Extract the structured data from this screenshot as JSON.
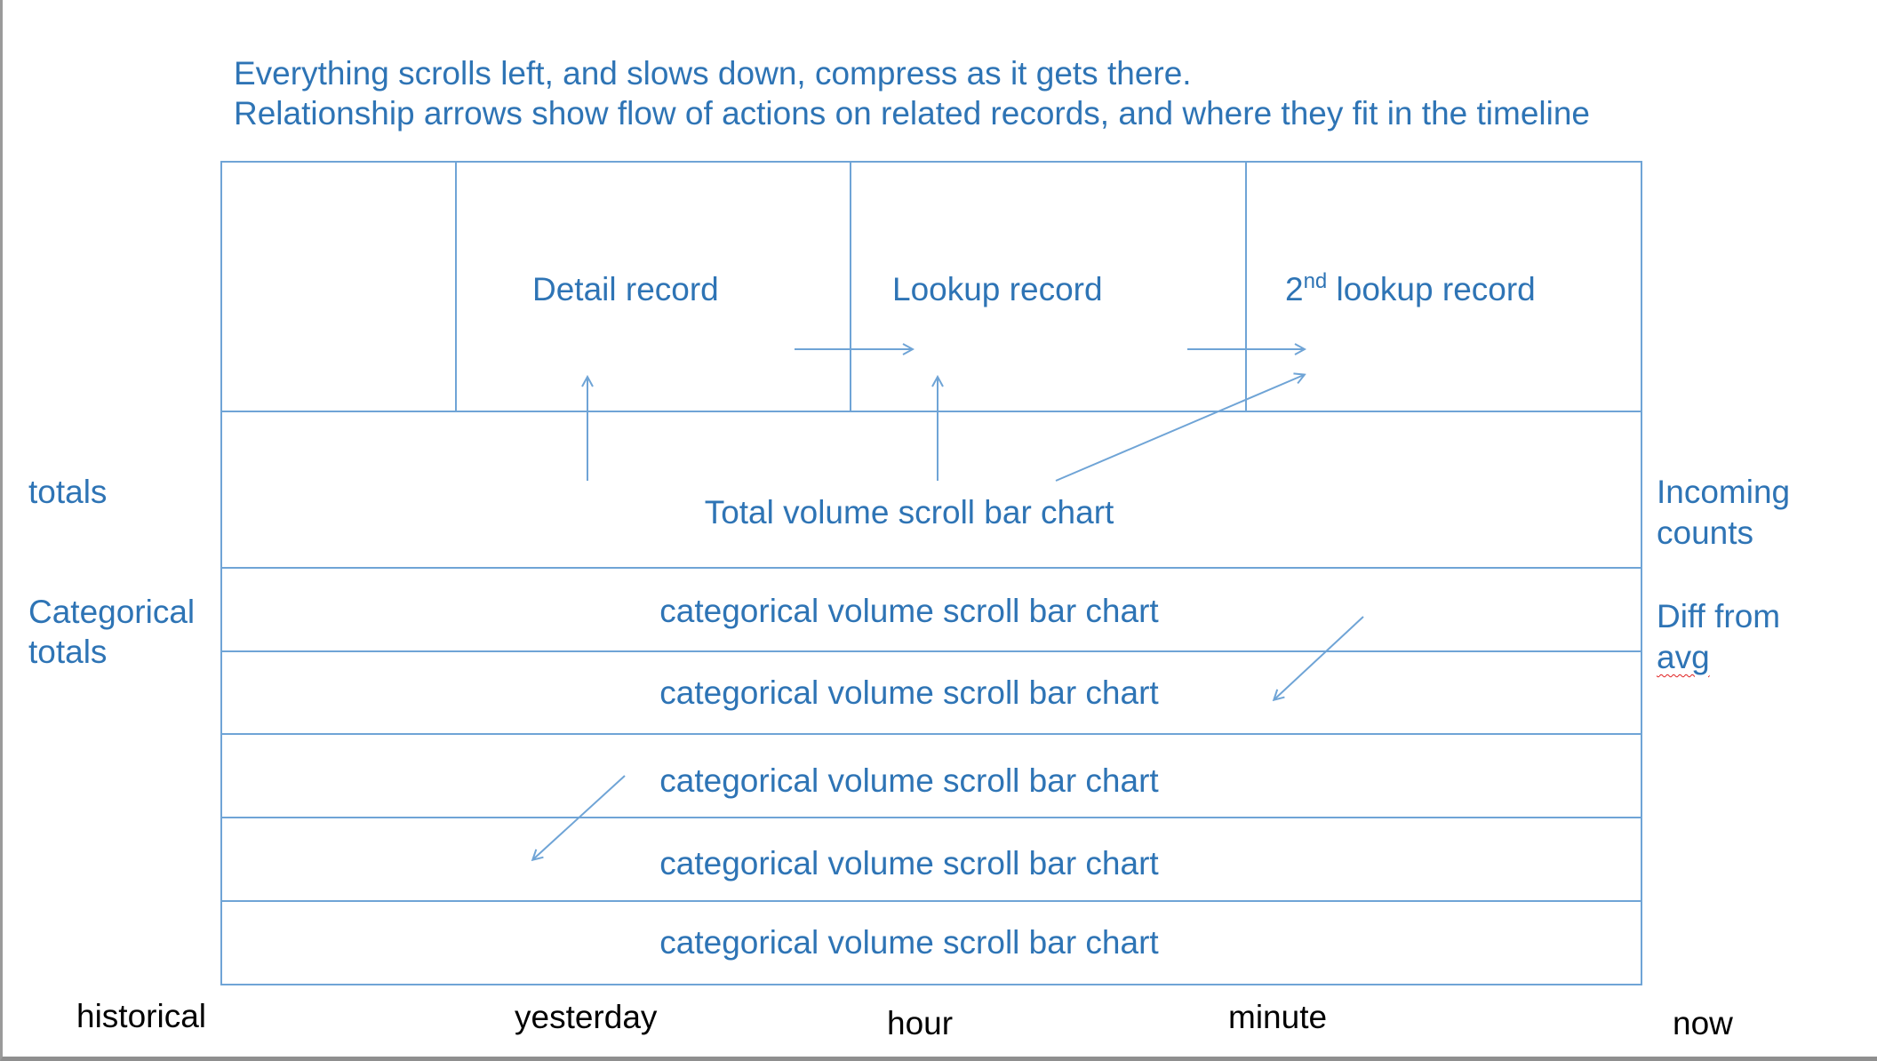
{
  "header": {
    "line1": "Everything scrolls left, and slows down, compress as it gets there.",
    "line2": "Relationship arrows show flow of actions on related records, and where they fit in the timeline"
  },
  "records": {
    "detail": "Detail record",
    "lookup": "Lookup record",
    "second_prefix": "2",
    "second_sup": "nd",
    "second_rest": " lookup record"
  },
  "rows": {
    "total_chart": "Total volume scroll bar chart",
    "categorical": [
      "categorical volume scroll bar chart",
      "categorical volume scroll bar chart",
      "categorical volume scroll bar chart",
      "categorical volume scroll bar chart",
      "categorical volume scroll bar chart"
    ]
  },
  "left_labels": {
    "totals": "totals",
    "categorical_line1": "Categorical",
    "categorical_line2": "totals"
  },
  "right_labels": {
    "incoming_line1": "Incoming",
    "incoming_line2": "counts",
    "diff_line1": "Diff from",
    "diff_line2": "avg"
  },
  "timeline": {
    "historical": "historical",
    "yesterday": "yesterday",
    "hour": "hour",
    "minute": "minute",
    "now": "now"
  },
  "colors": {
    "line": "#6fa4d6",
    "text": "#2e74b5"
  }
}
